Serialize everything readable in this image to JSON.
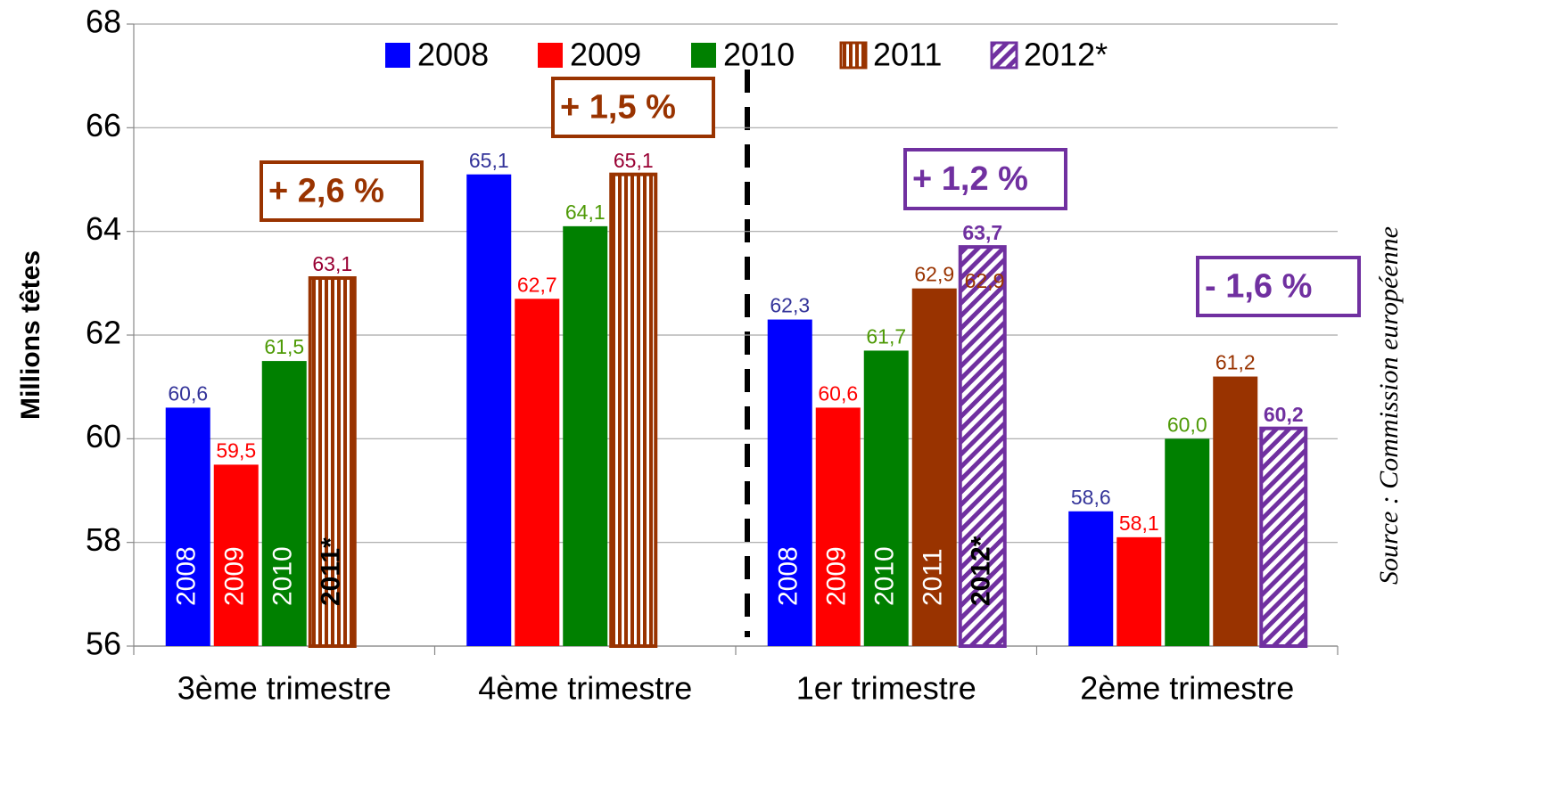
{
  "chart_data": {
    "type": "bar",
    "ylabel": "Millions têtes",
    "source": "Source : Commission européenne",
    "categories": [
      "3ème trimestre",
      "4ème trimestre",
      "1er trimestre",
      "2ème trimestre"
    ],
    "series": [
      {
        "name": "2008",
        "color": "#0000ff",
        "label_color": "#333399",
        "values": [
          60.6,
          65.1,
          62.3,
          58.6
        ],
        "value_labels": [
          "60,6",
          "65,1",
          "62,3",
          "58,6"
        ],
        "hatch": [
          null,
          null,
          null,
          null
        ]
      },
      {
        "name": "2009",
        "color": "#ff0000",
        "label_color": "#ff0000",
        "values": [
          59.5,
          62.7,
          60.6,
          58.1
        ],
        "value_labels": [
          "59,5",
          "62,7",
          "60,6",
          "58,1"
        ],
        "hatch": [
          null,
          null,
          null,
          null
        ]
      },
      {
        "name": "2010",
        "color": "#008000",
        "label_color": "#4e9a06",
        "values": [
          61.5,
          64.1,
          61.7,
          60.0
        ],
        "value_labels": [
          "61,5",
          "64,1",
          "61,7",
          "60,0"
        ],
        "hatch": [
          null,
          null,
          null,
          null
        ]
      },
      {
        "name": "2011",
        "color": "#993300",
        "label_color": "#993300",
        "legend_hatch": "vertical",
        "values": [
          63.1,
          65.1,
          62.9,
          61.2
        ],
        "value_labels": [
          "63,1",
          "65,1",
          "62,9",
          "61,2"
        ],
        "hatch": [
          "vertical",
          "vertical",
          null,
          null
        ]
      },
      {
        "name": "2012*",
        "color": "#7030a0",
        "label_color": "#7030a0",
        "legend_hatch": "diagonal",
        "values": [
          null,
          null,
          63.7,
          60.2
        ],
        "value_labels": [
          null,
          null,
          "63,7",
          "60,2"
        ],
        "hatch": [
          null,
          null,
          "diagonal",
          "diagonal"
        ]
      }
    ],
    "in_bar_labels": [
      [
        "2008",
        "2009",
        "2010",
        "2011*",
        null
      ],
      null,
      [
        "2008",
        "2009",
        "2010",
        "2011",
        "2012*"
      ],
      null
    ],
    "change_labels": [
      {
        "label": "+ 2,6 %",
        "color": "#993300"
      },
      {
        "label": "+ 1,5 %",
        "color": "#993300"
      },
      {
        "label": "+ 1,2 %",
        "color": "#7030a0"
      },
      {
        "label": "- 1,6 %",
        "color": "#7030a0"
      }
    ],
    "annotations": [
      {
        "text": "62,9",
        "color": "#993300"
      }
    ],
    "ylim": [
      56,
      68
    ],
    "yticks": [
      56,
      58,
      60,
      62,
      64,
      66,
      68
    ],
    "grid": true,
    "legend": "top"
  }
}
